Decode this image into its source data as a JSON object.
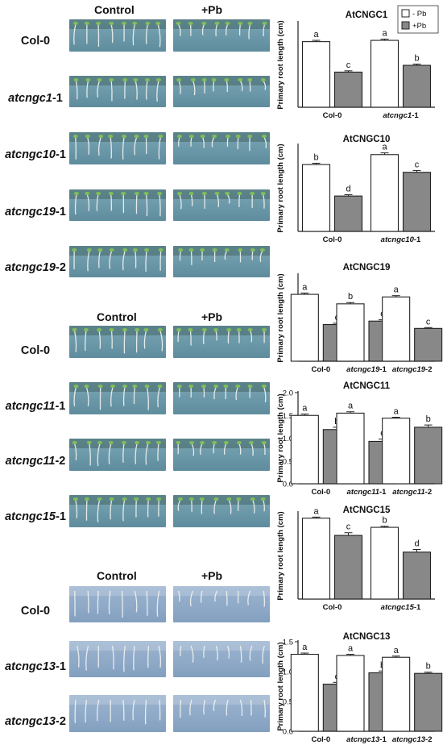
{
  "panels": [
    {
      "header": {
        "control": "Control",
        "treatment": "+Pb"
      },
      "rows": [
        {
          "italic": "",
          "plain": "Col-0"
        },
        {
          "italic": "atcngc1",
          "plain": "-1"
        },
        {
          "italic": "atcngc10",
          "plain": "-1"
        },
        {
          "italic": "atcngc19",
          "plain": "-1"
        },
        {
          "italic": "atcngc19",
          "plain": "-2"
        }
      ]
    },
    {
      "header": {
        "control": "Control",
        "treatment": "+Pb"
      },
      "rows": [
        {
          "italic": "",
          "plain": "Col-0"
        },
        {
          "italic": "atcngc11",
          "plain": "-1"
        },
        {
          "italic": "atcngc11",
          "plain": "-2"
        },
        {
          "italic": "atcngc15",
          "plain": "-1"
        }
      ]
    },
    {
      "header": {
        "control": "Control",
        "treatment": "+Pb"
      },
      "rows": [
        {
          "italic": "",
          "plain": "Col-0"
        },
        {
          "italic": "atcngc13",
          "plain": "-1"
        },
        {
          "italic": "atcngc13",
          "plain": "-2"
        }
      ]
    }
  ],
  "legend": {
    "control": "- Pb",
    "treatment": "+Pb",
    "colors": {
      "control": "#ffffff",
      "treatment": "#888888"
    }
  },
  "chart_data": [
    {
      "type": "bar",
      "title": "AtCNGC1",
      "ylabel": "Primary root length (cm)",
      "ylim": [
        0,
        2.0
      ],
      "yticks": [],
      "groups": [
        {
          "italic": "",
          "plain": "Col-0"
        },
        {
          "italic": "atcngc1",
          "plain": "-1"
        }
      ],
      "series": [
        {
          "name": "- Pb",
          "values": [
            1.55,
            1.58
          ],
          "errors": [
            0.03,
            0.03
          ],
          "letters": [
            "a",
            "a"
          ]
        },
        {
          "name": "+Pb",
          "values": [
            0.83,
            0.99
          ],
          "errors": [
            0.03,
            0.03
          ],
          "letters": [
            "c",
            "b"
          ]
        }
      ]
    },
    {
      "type": "bar",
      "title": "AtCNGC10",
      "ylabel": "Primary root length (cm)",
      "ylim": [
        0,
        2.0
      ],
      "yticks": [],
      "groups": [
        {
          "italic": "",
          "plain": "Col-0"
        },
        {
          "italic": "atcngc10",
          "plain": "-1"
        }
      ],
      "series": [
        {
          "name": "- Pb",
          "values": [
            1.55,
            1.78
          ],
          "errors": [
            0.03,
            0.04
          ],
          "letters": [
            "b",
            "a"
          ]
        },
        {
          "name": "+Pb",
          "values": [
            0.82,
            1.37
          ],
          "errors": [
            0.03,
            0.04
          ],
          "letters": [
            "d",
            "c"
          ]
        }
      ]
    },
    {
      "type": "bar",
      "title": "AtCNGC19",
      "ylabel": "Primary root length (cm)",
      "ylim": [
        0,
        2.0
      ],
      "yticks": [],
      "groups": [
        {
          "italic": "",
          "plain": "Col-0"
        },
        {
          "italic": "atcngc19",
          "plain": "-1"
        },
        {
          "italic": "atcngc19",
          "plain": "-2"
        }
      ],
      "series": [
        {
          "name": "- Pb",
          "values": [
            1.55,
            1.33,
            1.49
          ],
          "errors": [
            0.03,
            0.03,
            0.03
          ],
          "letters": [
            "a",
            "b",
            "a"
          ]
        },
        {
          "name": "+Pb",
          "values": [
            0.85,
            0.93,
            0.76
          ],
          "errors": [
            0.03,
            0.03,
            0.02
          ],
          "letters": [
            "c",
            "c",
            "c"
          ]
        }
      ]
    },
    {
      "type": "bar",
      "title": "AtCNGC11",
      "ylabel": "Primary root length (cm)",
      "ylim": [
        0,
        2.0
      ],
      "yticks": [
        "0.0",
        "0.5",
        "1.0",
        "1.5",
        "2.0"
      ],
      "groups": [
        {
          "italic": "",
          "plain": "Col-0"
        },
        {
          "italic": "atcngc11",
          "plain": "-1"
        },
        {
          "italic": "atcngc11",
          "plain": "-2"
        }
      ],
      "series": [
        {
          "name": "- Pb",
          "values": [
            1.5,
            1.55,
            1.44
          ],
          "errors": [
            0.03,
            0.03,
            0.02
          ],
          "letters": [
            "a",
            "a",
            "a"
          ]
        },
        {
          "name": "+Pb",
          "values": [
            1.19,
            0.93,
            1.24
          ],
          "errors": [
            0.05,
            0.05,
            0.05
          ],
          "letters": [
            "b",
            "c",
            "b"
          ]
        }
      ]
    },
    {
      "type": "bar",
      "title": "AtCNGC15",
      "ylabel": "Primary root length (cm)",
      "ylim": [
        0,
        1.6
      ],
      "yticks": [],
      "groups": [
        {
          "italic": "",
          "plain": "Col-0"
        },
        {
          "italic": "atcngc15",
          "plain": "-1"
        }
      ],
      "series": [
        {
          "name": "- Pb",
          "values": [
            1.5,
            1.33
          ],
          "errors": [
            0.02,
            0.02
          ],
          "letters": [
            "a",
            "b"
          ]
        },
        {
          "name": "+Pb",
          "values": [
            1.18,
            0.87
          ],
          "errors": [
            0.05,
            0.05
          ],
          "letters": [
            "c",
            "d"
          ]
        }
      ]
    },
    {
      "type": "bar",
      "title": "AtCNGC13",
      "ylabel": "Primary root length (cm)",
      "ylim": [
        0,
        1.5
      ],
      "yticks": [
        "0.0",
        "0.5",
        "1.0",
        "1.5"
      ],
      "groups": [
        {
          "italic": "",
          "plain": "Col-0"
        },
        {
          "italic": "atcngc13",
          "plain": "-1"
        },
        {
          "italic": "atcngc13",
          "plain": "-2"
        }
      ],
      "series": [
        {
          "name": "- Pb",
          "values": [
            1.29,
            1.27,
            1.24
          ],
          "errors": [
            0.02,
            0.02,
            0.02
          ],
          "letters": [
            "a",
            "a",
            "a"
          ]
        },
        {
          "name": "+Pb",
          "values": [
            0.79,
            0.98,
            0.97
          ],
          "errors": [
            0.03,
            0.03,
            0.02
          ],
          "letters": [
            "c",
            "b",
            "b"
          ]
        }
      ]
    }
  ]
}
